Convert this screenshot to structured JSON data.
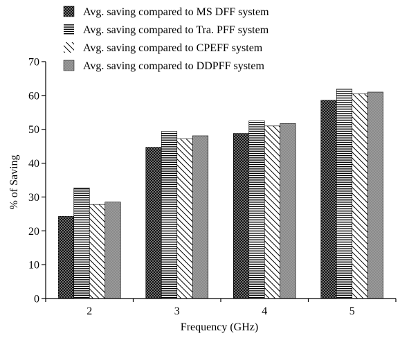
{
  "chart_data": {
    "type": "bar",
    "xlabel": "Frequency (GHz)",
    "ylabel": "% of Saving",
    "ylim": [
      0,
      70
    ],
    "yticks": [
      0,
      10,
      20,
      30,
      40,
      50,
      60,
      70
    ],
    "categories": [
      "2",
      "3",
      "4",
      "5"
    ],
    "grid": false,
    "legend_position": "top",
    "series": [
      {
        "name": "Avg. saving compared to MS DFF system",
        "pattern": "dense-dots",
        "values": [
          24.3,
          44.7,
          48.8,
          58.6
        ]
      },
      {
        "name": "Avg. saving compared to Tra. PFF system",
        "pattern": "horizontal-lines",
        "values": [
          32.7,
          49.4,
          52.5,
          61.9
        ]
      },
      {
        "name": "Avg. saving compared to CPEFF system",
        "pattern": "diagonal-lines",
        "values": [
          27.8,
          47.2,
          51.0,
          60.5
        ]
      },
      {
        "name": "Avg. saving compared to DDPFF system",
        "pattern": "gray-dots",
        "values": [
          28.5,
          48.1,
          51.7,
          61.0
        ]
      }
    ]
  }
}
